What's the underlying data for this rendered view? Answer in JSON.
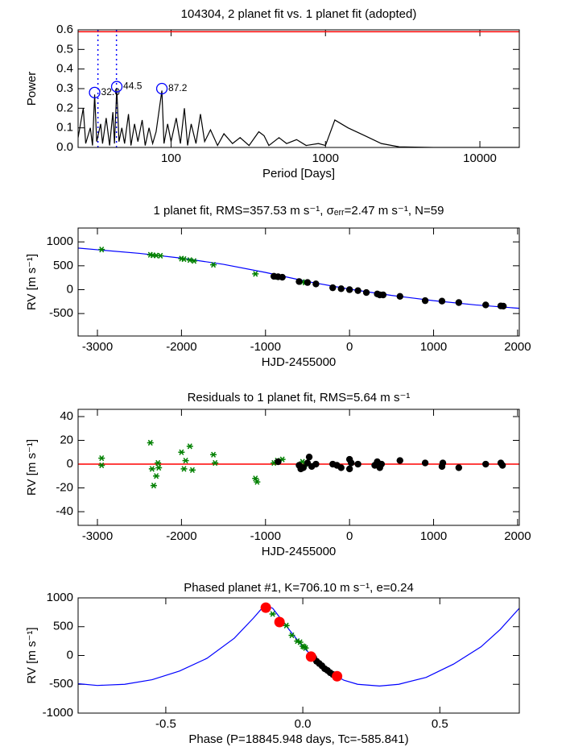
{
  "chart_data": [
    {
      "type": "line",
      "title": "104304,  2 planet fit vs. 1 planet fit (adopted)",
      "xlabel": "Period [Days]",
      "ylabel": "Power",
      "xlog": true,
      "xlim": [
        25,
        18000
      ],
      "ylim": [
        0,
        0.6
      ],
      "xticks": [
        100,
        1000,
        10000
      ],
      "yticks": [
        {
          "value": 0,
          "label": "0.0"
        },
        0.1,
        0.2,
        0.3,
        0.4,
        0.5,
        0.6
      ],
      "hlines": [
        {
          "y": 0.59,
          "color": "#ff0000"
        }
      ],
      "vlines": [
        {
          "x": 33.6,
          "color": "#0000ff"
        },
        {
          "x": 44.3,
          "color": "#0000ff"
        }
      ],
      "peaks": {
        "color": "#0000ff",
        "x": [
          32.0,
          44.5,
          87.2
        ],
        "y": [
          0.28,
          0.31,
          0.3
        ],
        "labels": [
          "32.0",
          "44.5",
          "87.2"
        ]
      },
      "series": [
        {
          "color": "#000000",
          "marker": "line",
          "x": [
            25,
            27,
            28,
            30,
            31,
            32,
            33,
            35,
            36,
            38,
            40,
            42,
            43,
            44.5,
            46,
            48,
            50,
            53,
            55,
            58,
            61,
            65,
            68,
            72,
            76,
            80,
            87.2,
            90,
            95,
            100,
            108,
            115,
            122,
            128,
            135,
            145,
            155,
            165,
            180,
            200,
            220,
            250,
            280,
            320,
            370,
            400,
            430,
            500,
            560,
            650,
            750,
            900,
            1000,
            1150,
            1400,
            1800,
            2300,
            3000,
            5000,
            18000
          ],
          "y": [
            0.05,
            0.2,
            0.02,
            0.1,
            0.01,
            0.27,
            0.03,
            0.12,
            0.02,
            0.15,
            0.01,
            0.18,
            0.02,
            0.3,
            0.03,
            0.1,
            0.02,
            0.17,
            0.01,
            0.12,
            0.03,
            0.14,
            0.01,
            0.1,
            0.02,
            0.08,
            0.29,
            0.02,
            0.12,
            0.03,
            0.15,
            0.02,
            0.2,
            0.01,
            0.12,
            0.02,
            0.17,
            0.03,
            0.09,
            0.01,
            0.07,
            0.02,
            0.05,
            0.01,
            0.08,
            0.06,
            0.01,
            0.05,
            0.02,
            0.04,
            0.01,
            0.02,
            0.01,
            0.14,
            0.1,
            0.06,
            0.02,
            0.003,
            0,
            0
          ]
        }
      ]
    },
    {
      "type": "scatter",
      "title": "1 planet fit, RMS=357.53 m s⁻¹, σₑᵣᵣ=2.47 m s⁻¹, N=59",
      "xlabel": "HJD-2455000",
      "ylabel": "RV [m s⁻¹]",
      "xlim": [
        -3230,
        2020
      ],
      "ylim": [
        -970,
        1290
      ],
      "xticks": [
        -3000,
        -2000,
        -1000,
        0,
        1000,
        2000
      ],
      "yticks": [
        -500,
        0,
        500,
        1000
      ],
      "series": [
        {
          "color": "#0000ff",
          "marker": "line",
          "x": [
            -3230,
            -2500,
            -2000,
            -1500,
            -1000,
            -500,
            0,
            500,
            1000,
            1500,
            2020
          ],
          "y": [
            870,
            760,
            660,
            530,
            360,
            170,
            10,
            -120,
            -230,
            -320,
            -390
          ]
        },
        {
          "color": "#008000",
          "marker": "star",
          "x": [
            -2950,
            -2370,
            -2340,
            -2300,
            -2250,
            -2000,
            -1970,
            -1900,
            -1850,
            -1620,
            -1120,
            -900,
            -860,
            -830,
            -560,
            -530
          ],
          "y": [
            840,
            730,
            720,
            715,
            710,
            650,
            640,
            620,
            600,
            520,
            330,
            280,
            265,
            260,
            160,
            150
          ]
        },
        {
          "color": "#000000",
          "marker": "dot",
          "x": [
            -900,
            -850,
            -800,
            -600,
            -500,
            -400,
            -200,
            -100,
            0,
            100,
            200,
            330,
            360,
            400,
            600,
            900,
            1100,
            1300,
            1620,
            1800,
            1830
          ],
          "y": [
            280,
            270,
            260,
            170,
            150,
            120,
            40,
            20,
            0,
            -20,
            -60,
            -90,
            -110,
            -110,
            -140,
            -230,
            -240,
            -270,
            -320,
            -340,
            -345
          ]
        }
      ]
    },
    {
      "type": "scatter",
      "title": "Residuals to 1 planet fit, RMS=5.64 m s⁻¹",
      "xlabel": "HJD-2455000",
      "ylabel": "RV [m s⁻¹]",
      "xlim": [
        -3230,
        2020
      ],
      "ylim": [
        -51.5,
        46.1
      ],
      "xticks": [
        -3000,
        -2000,
        -1000,
        0,
        1000,
        2000
      ],
      "yticks": [
        -40,
        -20,
        0,
        20,
        40
      ],
      "hlines": [
        {
          "y": 0,
          "color": "#ff0000"
        }
      ],
      "series": [
        {
          "color": "#008000",
          "marker": "star",
          "x": [
            -2950,
            -2950,
            -2370,
            -2350,
            -2330,
            -2300,
            -2280,
            -2270,
            -2000,
            -1970,
            -1950,
            -1900,
            -1870,
            -1620,
            -1600,
            -1120,
            -1100,
            -900,
            -860,
            -800,
            -560,
            -540
          ],
          "y": [
            5,
            -1,
            18,
            -4,
            -18,
            -10,
            1,
            -3,
            10,
            -4,
            3,
            15,
            -5,
            8,
            1,
            -12,
            -15,
            1,
            3,
            4,
            2,
            -2
          ]
        },
        {
          "color": "#000000",
          "marker": "dot",
          "x": [
            -850,
            -600,
            -580,
            -550,
            -500,
            -480,
            -450,
            -400,
            -200,
            -150,
            -100,
            0,
            0,
            20,
            100,
            300,
            330,
            360,
            380,
            600,
            900,
            1100,
            1110,
            1300,
            1620,
            1800,
            1820
          ],
          "y": [
            2,
            -1,
            -4,
            -3,
            1,
            6,
            -2,
            0,
            0,
            -1,
            -3,
            4,
            -4,
            1,
            0,
            -1,
            2,
            -3,
            0,
            3,
            1,
            -2,
            1,
            -3,
            0,
            1,
            -1
          ]
        }
      ]
    },
    {
      "type": "scatter",
      "title": "Phased planet #1, K=706.10 m s⁻¹, e=0.24",
      "xlabel": "Phase (P=18845.948 days, Tc=-585.841)",
      "ylabel": "RV [m s⁻¹]",
      "xlim": [
        -0.82,
        0.79
      ],
      "ylim": [
        -1000,
        1000
      ],
      "xticks": [
        -0.5,
        {
          "value": 0,
          "label": "0.0"
        },
        0.5
      ],
      "yticks": [
        -1000,
        -500,
        0,
        500,
        1000
      ],
      "series": [
        {
          "color": "#0000ff",
          "marker": "line",
          "x": [
            -0.82,
            -0.75,
            -0.65,
            -0.55,
            -0.45,
            -0.35,
            -0.25,
            -0.18,
            -0.14,
            -0.11,
            -0.05,
            0,
            0.05,
            0.1,
            0.15,
            0.2,
            0.28,
            0.35,
            0.45,
            0.55,
            0.65,
            0.72,
            0.79
          ],
          "y": [
            -490,
            -520,
            -500,
            -420,
            -270,
            -50,
            300,
            650,
            870,
            820,
            450,
            150,
            -80,
            -300,
            -430,
            -500,
            -530,
            -500,
            -380,
            -150,
            150,
            450,
            820
          ]
        },
        {
          "color": "#008000",
          "marker": "star",
          "x": [
            -0.11,
            -0.06,
            -0.04,
            -0.02,
            -0.01,
            0,
            0.005,
            0.01
          ],
          "y": [
            720,
            520,
            350,
            250,
            230,
            160,
            150,
            130
          ]
        },
        {
          "color": "#000000",
          "marker": "dot",
          "x": [
            0.03,
            0.04,
            0.05,
            0.06,
            0.07,
            0.08,
            0.09,
            0.1,
            0.11
          ],
          "y": [
            -10,
            -40,
            -100,
            -140,
            -180,
            -230,
            -260,
            -300,
            -330
          ]
        },
        {
          "color": "#ff0000",
          "marker": "bigdot",
          "x": [
            -0.135,
            -0.085,
            0.03,
            0.125
          ],
          "y": [
            830,
            580,
            -20,
            -360
          ]
        }
      ]
    }
  ]
}
